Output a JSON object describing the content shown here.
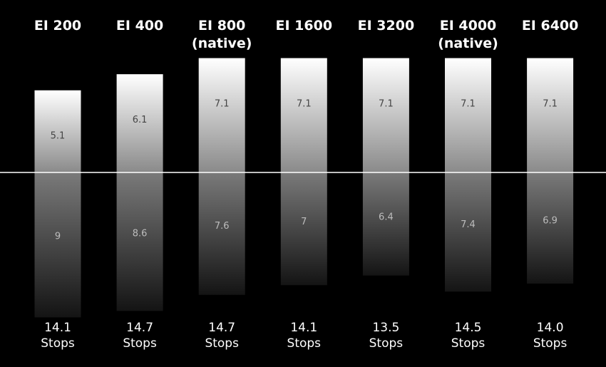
{
  "chart_data": {
    "type": "bar",
    "categories": [
      [
        "EI 200"
      ],
      [
        "EI 400"
      ],
      [
        "EI 800",
        "(native)"
      ],
      [
        "EI 1600"
      ],
      [
        "EI 3200"
      ],
      [
        "EI 4000",
        "(native)"
      ],
      [
        "EI 6400"
      ]
    ],
    "series": [
      {
        "values": [
          5.1,
          6.1,
          7.1,
          7.1,
          7.1,
          7.1,
          7.1
        ]
      },
      {
        "values": [
          9,
          8.6,
          7.6,
          7,
          6.4,
          7.4,
          6.9
        ]
      }
    ],
    "totals": [
      [
        "14.1",
        "Stops"
      ],
      [
        "14.7",
        "Stops"
      ],
      [
        "14.7",
        "Stops"
      ],
      [
        "14.1",
        "Stops"
      ],
      [
        "13.5",
        "Stops"
      ],
      [
        "14.5",
        "Stops"
      ],
      [
        "14.0",
        "Stops"
      ]
    ],
    "value_labels": {
      "above": [
        "5.1",
        "6.1",
        "7.1",
        "7.1",
        "7.1",
        "7.1",
        "7.1"
      ],
      "below": [
        "9",
        "8.6",
        "7.6",
        "7",
        "6.4",
        "7.4",
        "6.9"
      ]
    },
    "baseline": 0,
    "grid": false,
    "colors": {
      "background": "#000000",
      "bar_top": "#ffffff",
      "bar_mid": "#808080",
      "bar_bottom": "#141414",
      "baseline": "#ffffff",
      "text": "#ffffff"
    }
  }
}
